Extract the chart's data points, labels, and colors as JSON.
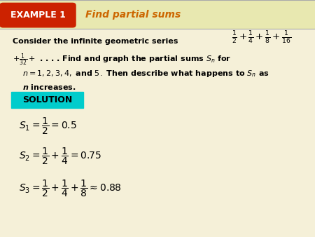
{
  "bg_color": "#f5f0d8",
  "header_bg": "#e8e8b0",
  "example_box_color": "#cc2200",
  "example_box_text": "EXAMPLE 1",
  "example_box_text_color": "#ffffff",
  "header_title": "Find partial sums",
  "header_title_color": "#cc6600",
  "solution_box_color": "#00cccc",
  "solution_text": "SOLUTION",
  "solution_text_color": "#000000"
}
